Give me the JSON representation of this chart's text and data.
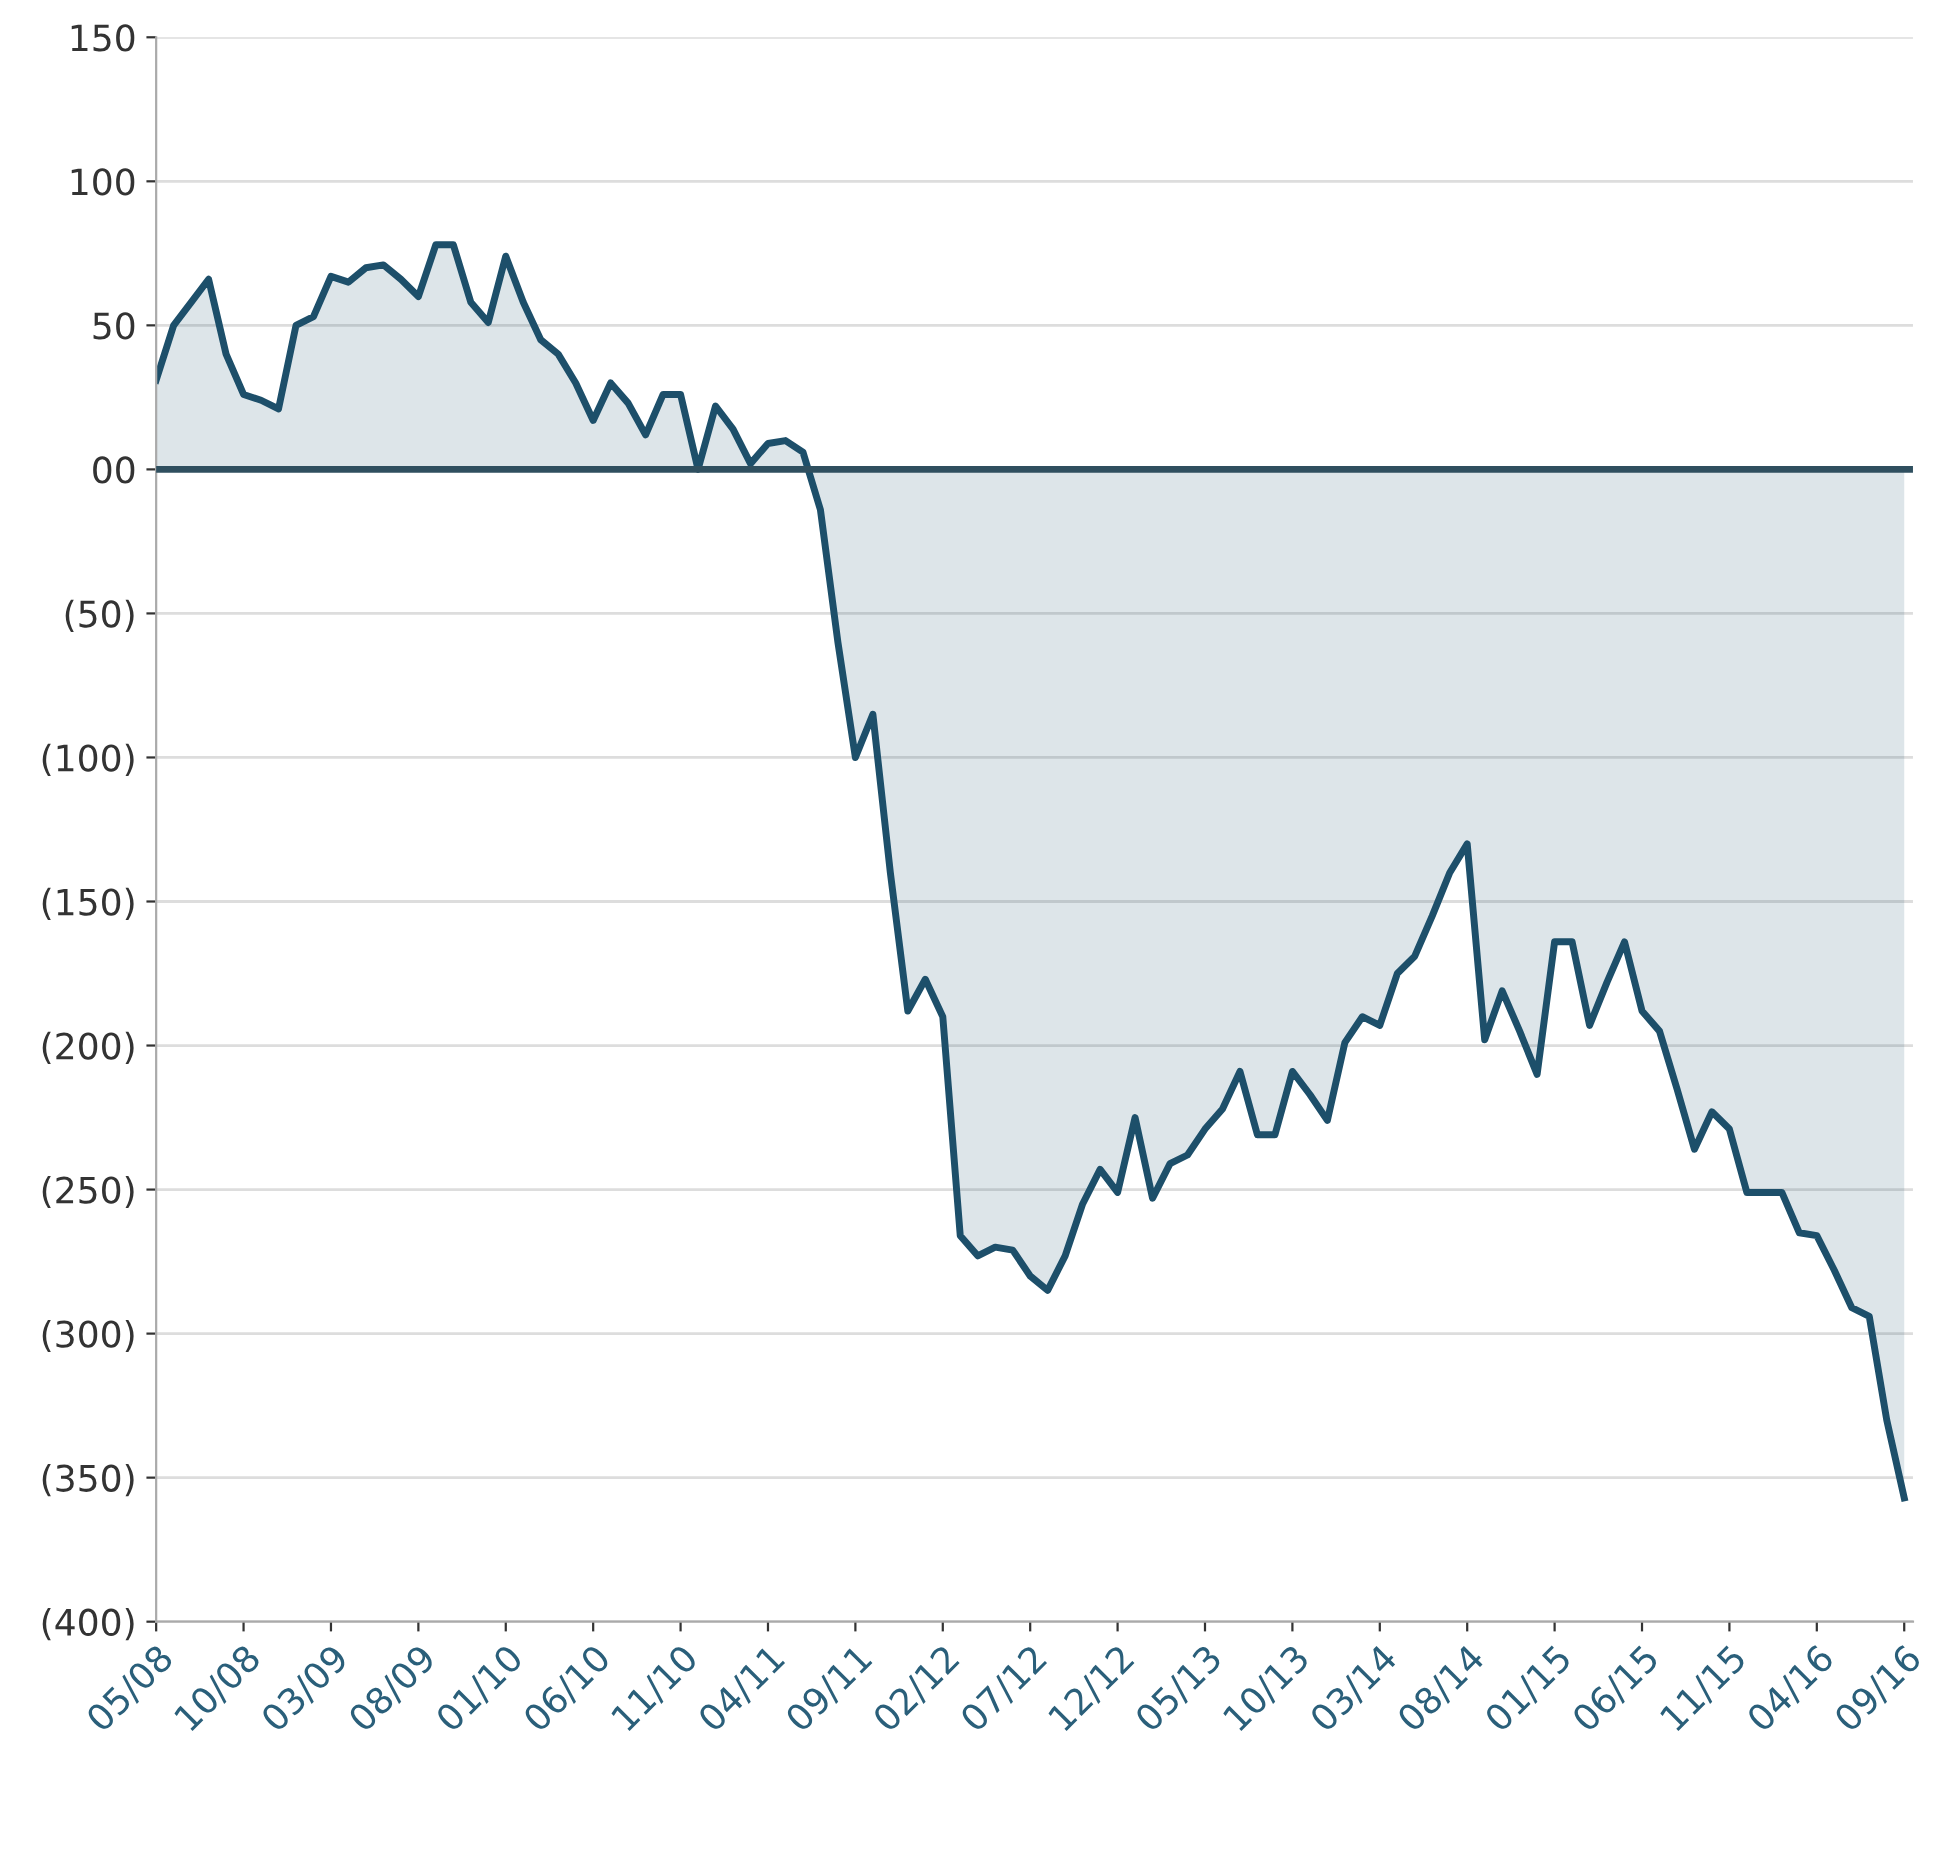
{
  "chart_data": {
    "type": "area",
    "categories": [
      "05/08",
      null,
      null,
      null,
      null,
      "10/08",
      null,
      null,
      null,
      null,
      "03/09",
      null,
      null,
      null,
      null,
      "08/09",
      null,
      null,
      null,
      null,
      "01/10",
      null,
      null,
      null,
      null,
      "06/10",
      null,
      null,
      null,
      null,
      "11/10",
      null,
      null,
      null,
      null,
      "04/11",
      null,
      null,
      null,
      null,
      "09/11",
      null,
      null,
      null,
      null,
      "02/12",
      null,
      null,
      null,
      null,
      "07/12",
      null,
      null,
      null,
      null,
      "12/12",
      null,
      null,
      null,
      null,
      "05/13",
      null,
      null,
      null,
      null,
      "10/13",
      null,
      null,
      null,
      null,
      "03/14",
      null,
      null,
      null,
      null,
      "08/14",
      null,
      null,
      null,
      null,
      "01/15",
      null,
      null,
      null,
      null,
      "06/15",
      null,
      null,
      null,
      null,
      "11/15",
      null,
      null,
      null,
      null,
      "04/16",
      null,
      null,
      null,
      null,
      "09/16"
    ],
    "series": [
      {
        "color": "#1d4f6a",
        "values": [
          31,
          50,
          58,
          66,
          40,
          26,
          24,
          21,
          50,
          53,
          67,
          65,
          70,
          71,
          66,
          60,
          78,
          78,
          58,
          51,
          74,
          58,
          45,
          40,
          30,
          17,
          30,
          23,
          12,
          26,
          26,
          0,
          22,
          14,
          2,
          9,
          10,
          6,
          -14,
          -60,
          -100,
          -85,
          -140,
          -188,
          -177,
          -190,
          -266,
          -273,
          -270,
          -271,
          -280,
          -285,
          -273,
          -255,
          -243,
          -251,
          -225,
          -253,
          -241,
          -238,
          -229,
          -222,
          -209,
          -231,
          -231,
          -209,
          -217,
          -226,
          -199,
          -190,
          -193,
          -175,
          -169,
          -155,
          -140,
          -130,
          -198,
          -181,
          -195,
          -210,
          -164,
          -164,
          -193,
          -178,
          -164,
          -188,
          -195,
          -215,
          -236,
          -223,
          -229,
          -251,
          -251,
          -251,
          -265,
          -266,
          -278,
          -291,
          -294,
          -330,
          -357
        ]
      }
    ],
    "ylim": [
      -400,
      150
    ],
    "yticks": [
      150,
      100,
      {
        "value": 50,
        "label": "50"
      },
      {
        "value": 0,
        "label": "00"
      },
      {
        "value": -50,
        "label": "(50)"
      },
      {
        "value": -100,
        "label": "(100)"
      },
      {
        "value": -150,
        "label": "(150)"
      },
      {
        "value": -200,
        "label": "(200)"
      },
      {
        "value": -250,
        "label": "(250)"
      },
      {
        "value": -300,
        "label": "(300)"
      },
      {
        "value": -350,
        "label": "(350)"
      },
      {
        "value": -400,
        "label": "(400)"
      }
    ],
    "grid": "y",
    "ref_lines": [
      {
        "axis": "y",
        "value": 0,
        "color": "#2f4f5f"
      }
    ]
  }
}
